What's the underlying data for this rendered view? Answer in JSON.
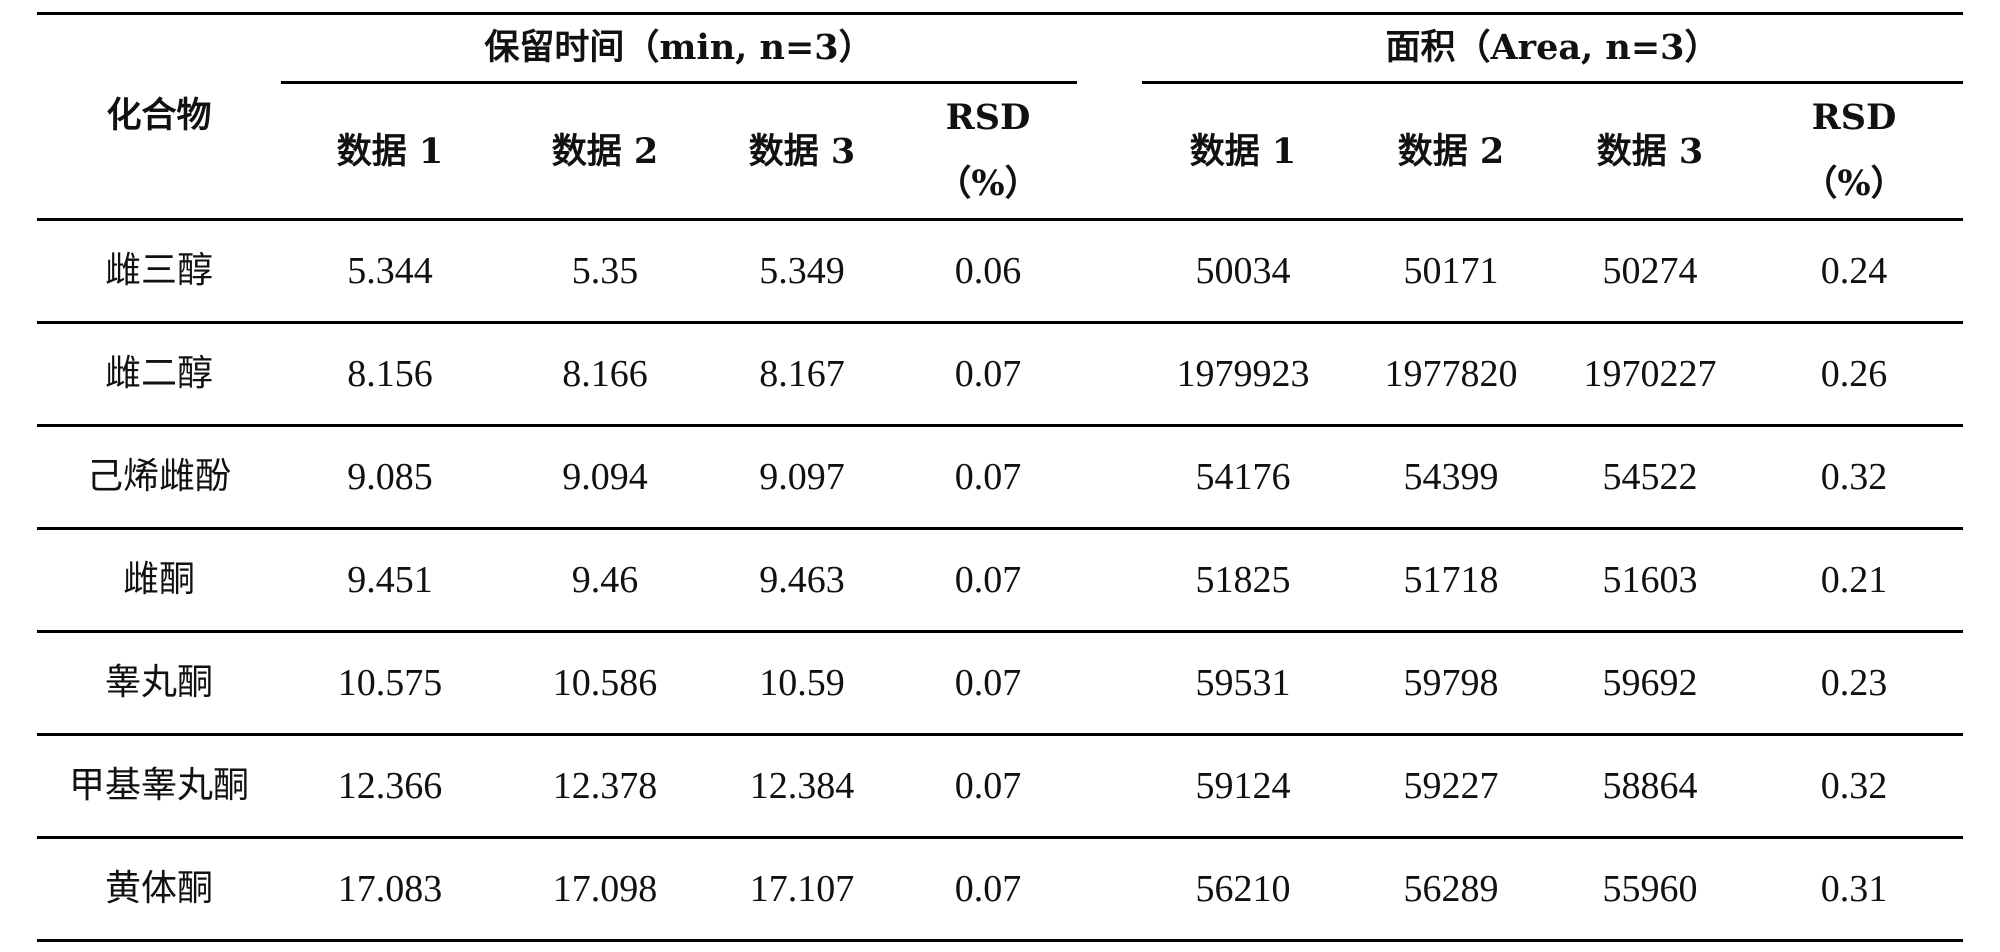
{
  "table": {
    "header": {
      "compound": "化合物",
      "group_retention": "保留时间（min, n=3）",
      "group_area": "面积（Area, n=3）",
      "data1": "数据 1",
      "data2": "数据 2",
      "data3": "数据 3",
      "rsd_line1": "RSD",
      "rsd_line2": "（%）"
    },
    "rows": [
      {
        "compound": "雌三醇",
        "rt": [
          "5.344",
          "5.35",
          "5.349"
        ],
        "rt_rsd": "0.06",
        "area": [
          "50034",
          "50171",
          "50274"
        ],
        "area_rsd": "0.24"
      },
      {
        "compound": "雌二醇",
        "rt": [
          "8.156",
          "8.166",
          "8.167"
        ],
        "rt_rsd": "0.07",
        "area": [
          "1979923",
          "1977820",
          "1970227"
        ],
        "area_rsd": "0.26"
      },
      {
        "compound": "己烯雌酚",
        "rt": [
          "9.085",
          "9.094",
          "9.097"
        ],
        "rt_rsd": "0.07",
        "area": [
          "54176",
          "54399",
          "54522"
        ],
        "area_rsd": "0.32"
      },
      {
        "compound": "雌酮",
        "rt": [
          "9.451",
          "9.46",
          "9.463"
        ],
        "rt_rsd": "0.07",
        "area": [
          "51825",
          "51718",
          "51603"
        ],
        "area_rsd": "0.21"
      },
      {
        "compound": "睾丸酮",
        "rt": [
          "10.575",
          "10.586",
          "10.59"
        ],
        "rt_rsd": "0.07",
        "area": [
          "59531",
          "59798",
          "59692"
        ],
        "area_rsd": "0.23"
      },
      {
        "compound": "甲基睾丸酮",
        "rt": [
          "12.366",
          "12.378",
          "12.384"
        ],
        "rt_rsd": "0.07",
        "area": [
          "59124",
          "59227",
          "58864"
        ],
        "area_rsd": "0.32"
      },
      {
        "compound": "黄体酮",
        "rt": [
          "17.083",
          "17.098",
          "17.107"
        ],
        "rt_rsd": "0.07",
        "area": [
          "56210",
          "56289",
          "55960"
        ],
        "area_rsd": "0.31"
      }
    ]
  }
}
